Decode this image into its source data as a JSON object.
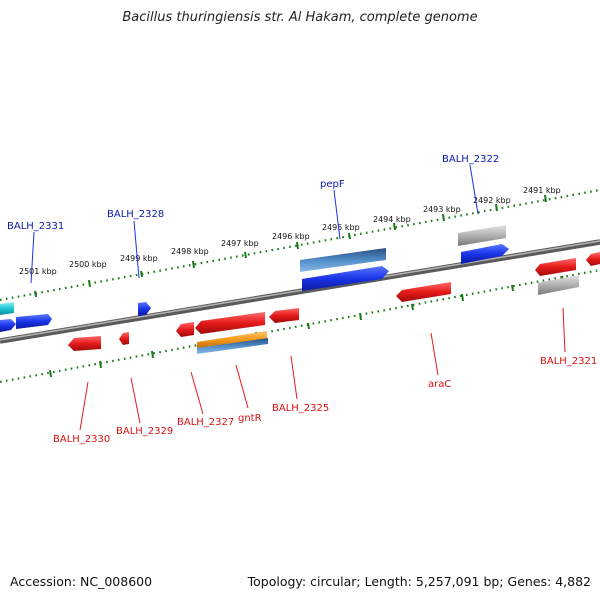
{
  "title": "Bacillus thuringiensis str. Al Hakam, complete genome",
  "footer": {
    "accession": "Accession: NC_008600",
    "summary": "Topology: circular; Length: 5,257,091 bp; Genes: 4,882"
  },
  "colors": {
    "forward_gene": "#1a33e6",
    "reverse_gene": "#e61a1a",
    "forward_label": "#0a1aa8",
    "reverse_label": "#d61212",
    "tick": "#1a7a1a",
    "backbone": "#7a7a7a",
    "pseudo_gene": "#a8a8a8",
    "cds_steelblue": "#3f78b0",
    "cds_orange": "#f59a1a",
    "cds_cyan": "#1ac8d4"
  },
  "scale_labels": [
    "2501 kbp",
    "2500 kbp",
    "2499 kbp",
    "2498 kbp",
    "2497 kbp",
    "2496 kbp",
    "2495 kbp",
    "2494 kbp",
    "2493 kbp",
    "2492 kbp",
    "2491 kbp"
  ],
  "gene_labels": {
    "forward": [
      "BALH_2331",
      "BALH_2328",
      "pepF",
      "BALH_2322"
    ],
    "reverse": [
      "BALH_2330",
      "BALH_2329",
      "BALH_2327",
      "gntR",
      "BALH_2325",
      "araC",
      "BALH_2321"
    ]
  }
}
